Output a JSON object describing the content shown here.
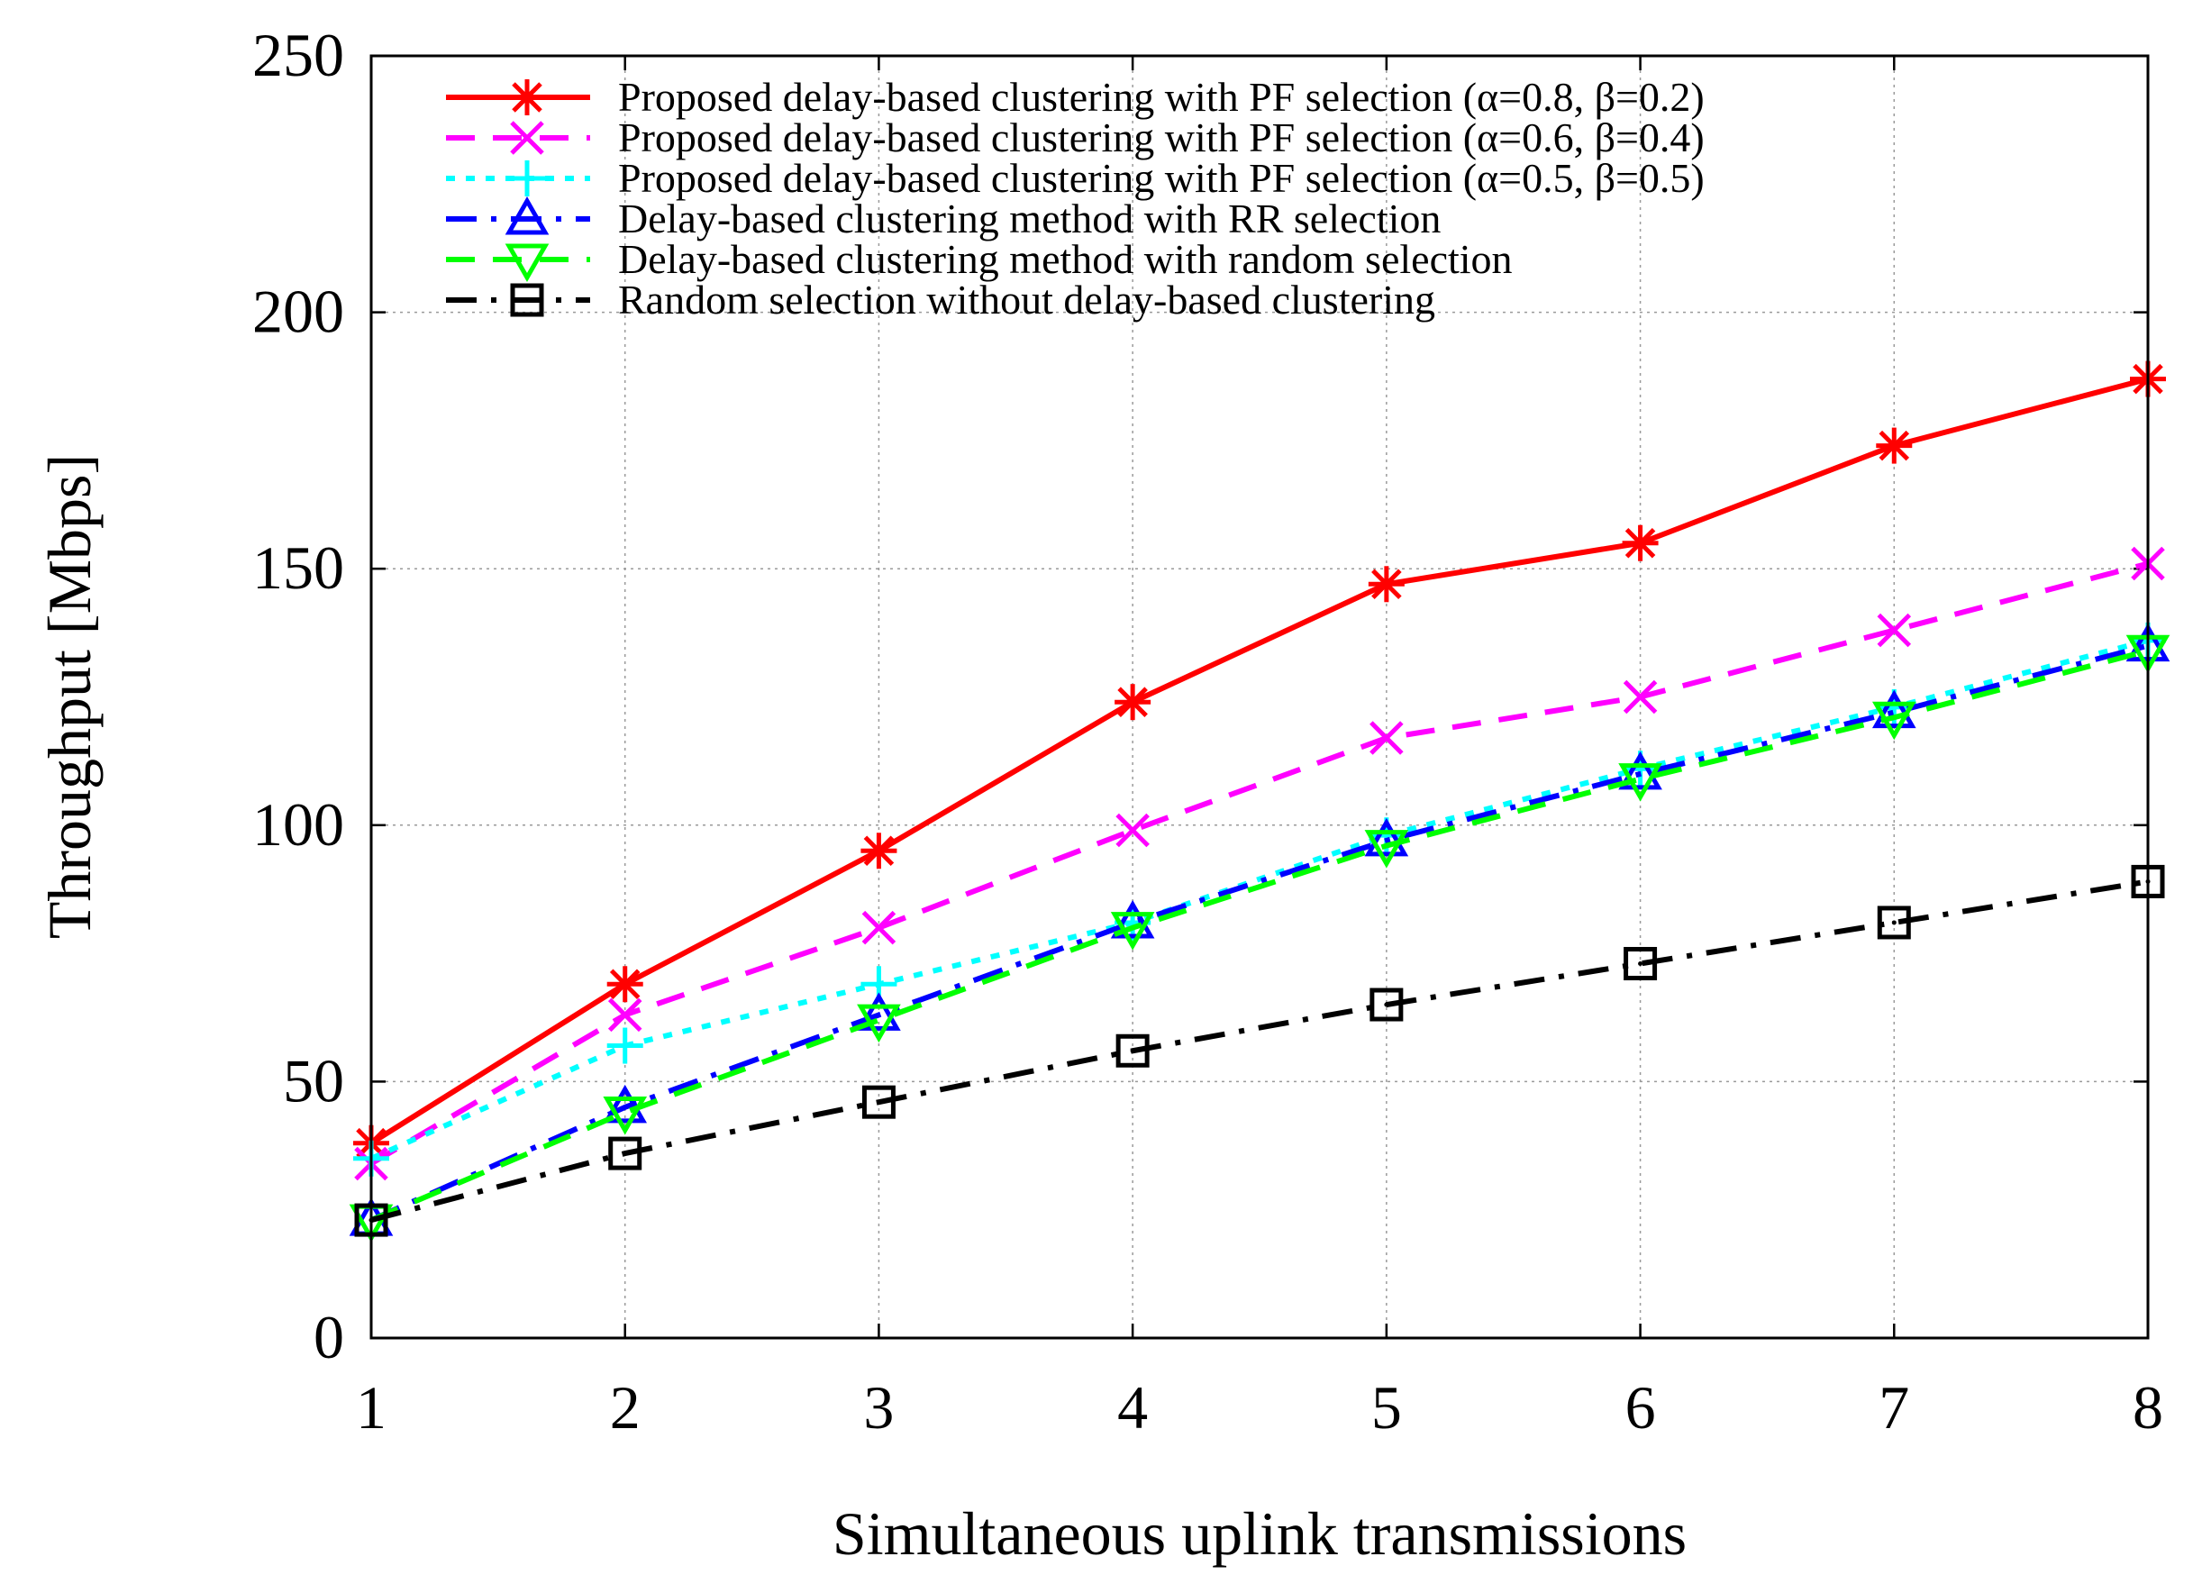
{
  "chart_data": {
    "type": "line",
    "title": "",
    "xlabel": "Simultaneous uplink transmissions",
    "ylabel": "Throughput [Mbps]",
    "x": [
      1,
      2,
      3,
      4,
      5,
      6,
      7,
      8
    ],
    "xlim": [
      1,
      8
    ],
    "ylim": [
      0,
      250
    ],
    "xticks": [
      1,
      2,
      3,
      4,
      5,
      6,
      7,
      8
    ],
    "yticks": [
      0,
      50,
      100,
      150,
      200,
      250
    ],
    "grid": true,
    "legend_position": "top",
    "series": [
      {
        "name": "Proposed delay-based clustering with PF selection (α=0.8, β=0.2)",
        "values": [
          38,
          69,
          95,
          124,
          147,
          155,
          174,
          187
        ],
        "color": "#ff0000",
        "dash": "solid",
        "marker": "asterisk"
      },
      {
        "name": "Proposed delay-based clustering with PF selection (α=0.6, β=0.4)",
        "values": [
          34,
          63,
          80,
          99,
          117,
          125,
          138,
          151
        ],
        "color": "#ff00ff",
        "dash": "dashed",
        "marker": "x"
      },
      {
        "name": "Proposed delay-based clustering with PF selection (α=0.5, β=0.5)",
        "values": [
          35,
          57,
          69,
          81,
          98,
          111,
          123,
          136
        ],
        "color": "#00ffff",
        "dash": "dotted",
        "marker": "plus"
      },
      {
        "name": "Delay-based clustering method with RR selection",
        "values": [
          23,
          45,
          63,
          81,
          97,
          110,
          122,
          135
        ],
        "color": "#0000ff",
        "dash": "dashdot",
        "marker": "triangle-up"
      },
      {
        "name": "Delay-based clustering method with random selection",
        "values": [
          23,
          44,
          62,
          80,
          96,
          109,
          121,
          134
        ],
        "color": "#00ff00",
        "dash": "dashed",
        "marker": "triangle-down"
      },
      {
        "name": "Random selection without delay-based clustering",
        "values": [
          23,
          36,
          46,
          56,
          65,
          73,
          81,
          89
        ],
        "color": "#000000",
        "dash": "dashdot",
        "marker": "square"
      }
    ]
  }
}
